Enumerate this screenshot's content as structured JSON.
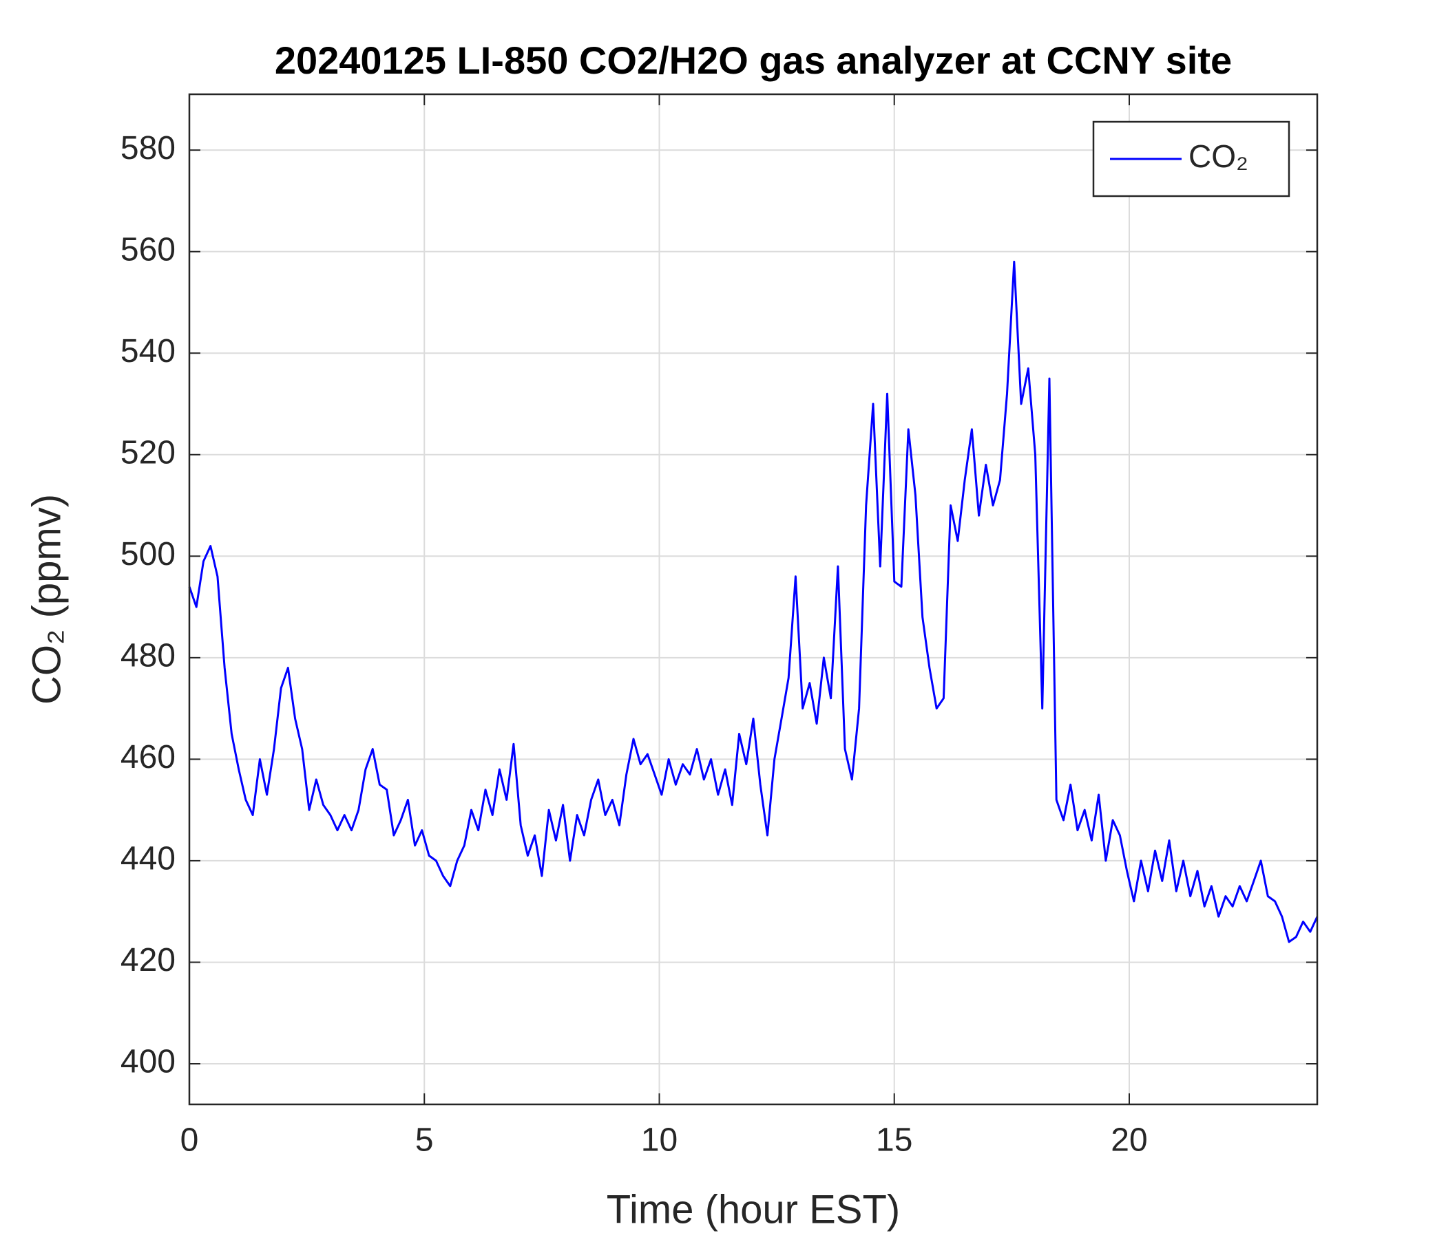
{
  "chart_data": {
    "type": "line",
    "title": "20240125 LI-850 CO2/H2O gas analyzer at CCNY site",
    "x_label": "Time (hour EST)",
    "y_label": "CO₂ (ppmv)",
    "xlim": [
      0,
      24
    ],
    "xticks": [
      0,
      5,
      10,
      15,
      20
    ],
    "ylim": [
      392,
      591
    ],
    "yticks": [
      400,
      420,
      440,
      460,
      480,
      500,
      520,
      540,
      560,
      580
    ],
    "grid": true,
    "legend": "upper right",
    "x": [
      0,
      0.15,
      0.3,
      0.45,
      0.6,
      0.75,
      0.9,
      1.05,
      1.2,
      1.35,
      1.5,
      1.65,
      1.8,
      1.95,
      2.1,
      2.25,
      2.4,
      2.55,
      2.7,
      2.85,
      3,
      3.15,
      3.3,
      3.45,
      3.6,
      3.75,
      3.9,
      4.05,
      4.2,
      4.35,
      4.5,
      4.65,
      4.8,
      4.95,
      5.1,
      5.25,
      5.4,
      5.55,
      5.7,
      5.85,
      6,
      6.15,
      6.3,
      6.45,
      6.6,
      6.75,
      6.9,
      7.05,
      7.2,
      7.35,
      7.5,
      7.65,
      7.8,
      7.95,
      8.1,
      8.25,
      8.4,
      8.55,
      8.7,
      8.85,
      9,
      9.15,
      9.3,
      9.45,
      9.6,
      9.75,
      9.9,
      10.05,
      10.2,
      10.35,
      10.5,
      10.65,
      10.8,
      10.95,
      11.1,
      11.25,
      11.4,
      11.55,
      11.7,
      11.85,
      12,
      12.15,
      12.3,
      12.45,
      12.6,
      12.75,
      12.9,
      13.05,
      13.2,
      13.35,
      13.5,
      13.65,
      13.8,
      13.95,
      14.1,
      14.25,
      14.4,
      14.55,
      14.7,
      14.85,
      15,
      15.15,
      15.3,
      15.45,
      15.6,
      15.75,
      15.9,
      16.05,
      16.2,
      16.35,
      16.5,
      16.65,
      16.8,
      16.95,
      17.1,
      17.25,
      17.4,
      17.55,
      17.7,
      17.85,
      18,
      18.15,
      18.3,
      18.45,
      18.6,
      18.75,
      18.9,
      19.05,
      19.2,
      19.35,
      19.5,
      19.65,
      19.8,
      19.95,
      20.1,
      20.25,
      20.4,
      20.55,
      20.7,
      20.85,
      21,
      21.15,
      21.3,
      21.45,
      21.6,
      21.75,
      21.9,
      22.05,
      22.2,
      22.35,
      22.5,
      22.65,
      22.8,
      22.95,
      23.1,
      23.25,
      23.4,
      23.55,
      23.7,
      23.85,
      24
    ],
    "series": [
      {
        "name": "CO₂",
        "color": "#0000ff",
        "values": [
          494,
          490,
          499,
          502,
          496,
          478,
          465,
          458,
          452,
          449,
          460,
          453,
          462,
          474,
          478,
          468,
          462,
          450,
          456,
          451,
          449,
          446,
          449,
          446,
          450,
          458,
          462,
          455,
          454,
          445,
          448,
          452,
          443,
          446,
          441,
          440,
          437,
          435,
          440,
          443,
          450,
          446,
          454,
          449,
          458,
          452,
          463,
          447,
          441,
          445,
          437,
          450,
          444,
          451,
          440,
          449,
          445,
          452,
          456,
          449,
          452,
          447,
          457,
          464,
          459,
          461,
          457,
          453,
          460,
          455,
          459,
          457,
          462,
          456,
          460,
          453,
          458,
          451,
          465,
          459,
          468,
          455,
          445,
          460,
          468,
          476,
          496,
          470,
          475,
          467,
          480,
          472,
          498,
          462,
          456,
          470,
          510,
          530,
          498,
          532,
          495,
          494,
          525,
          512,
          488,
          478,
          470,
          472,
          510,
          503,
          515,
          525,
          508,
          518,
          510,
          515,
          532,
          558,
          530,
          537,
          520,
          470,
          535,
          452,
          448,
          455,
          446,
          450,
          444,
          453,
          440,
          448,
          445,
          438,
          432,
          440,
          434,
          442,
          436,
          444,
          434,
          440,
          433,
          438,
          431,
          435,
          429,
          433,
          431,
          435,
          432,
          436,
          440,
          433,
          432,
          429,
          424,
          425,
          428,
          426,
          429
        ]
      }
    ]
  }
}
